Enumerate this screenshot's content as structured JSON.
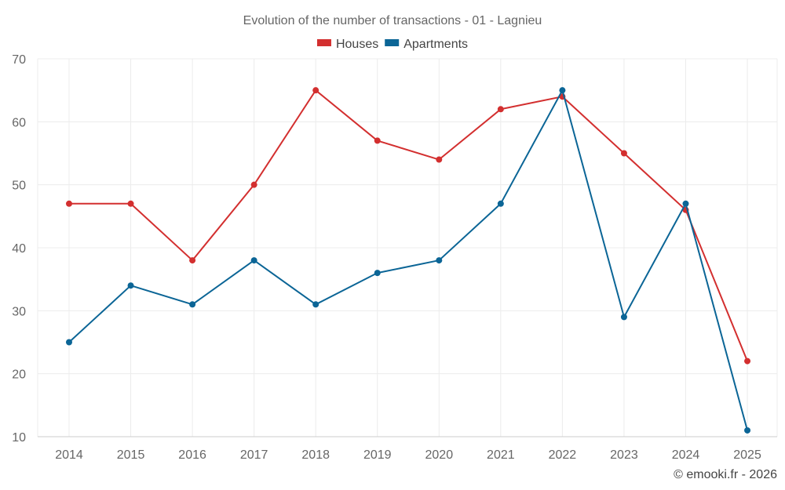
{
  "chart_data": {
    "type": "line",
    "title": "Evolution of the number of transactions - 01 - Lagnieu",
    "categories": [
      "2014",
      "2015",
      "2016",
      "2017",
      "2018",
      "2019",
      "2020",
      "2021",
      "2022",
      "2023",
      "2024",
      "2025"
    ],
    "series": [
      {
        "name": "Houses",
        "color": "#d32f2f",
        "values": [
          47,
          47,
          38,
          50,
          65,
          57,
          54,
          62,
          64,
          55,
          46,
          22
        ]
      },
      {
        "name": "Apartments",
        "color": "#0b6596",
        "values": [
          25,
          34,
          31,
          38,
          31,
          36,
          38,
          47,
          65,
          29,
          47,
          11
        ]
      }
    ],
    "ylim": [
      10,
      70
    ],
    "yticks": [
      "10",
      "20",
      "30",
      "40",
      "50",
      "60",
      "70"
    ],
    "xlabel": "",
    "ylabel": "",
    "grid": true,
    "legend": "top-center"
  },
  "credit": "© emooki.fr - 2026"
}
